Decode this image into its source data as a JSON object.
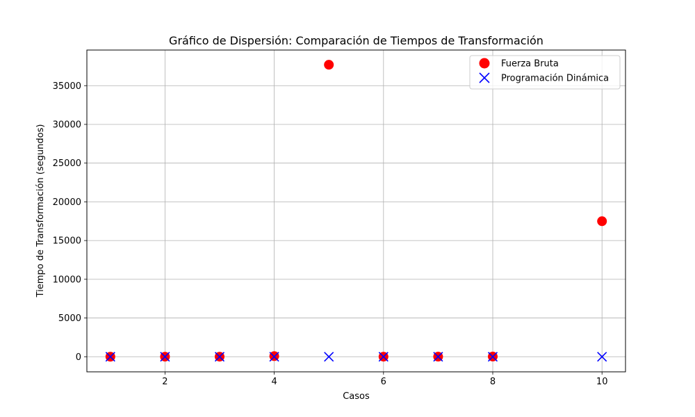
{
  "chart_data": {
    "type": "scatter",
    "title": "Gráfico de Dispersión: Comparación de Tiempos de Transformación",
    "xlabel": "Casos",
    "ylabel": "Tiempo de Transformación (segundos)",
    "xlim": [
      0.57,
      10.43
    ],
    "ylim": [
      -1950,
      39600
    ],
    "xticks": [
      2,
      4,
      6,
      8,
      10
    ],
    "yticks": [
      0,
      5000,
      10000,
      15000,
      20000,
      25000,
      30000,
      35000
    ],
    "grid": true,
    "legend_position": "top-right",
    "series": [
      {
        "name": "Fuerza Bruta",
        "marker": "circle",
        "color": "#ff0000",
        "x": [
          1,
          2,
          3,
          4,
          5,
          6,
          7,
          8,
          10
        ],
        "y": [
          2,
          3,
          5,
          80,
          37700,
          5,
          10,
          20,
          17500
        ]
      },
      {
        "name": "Programación Dinámica",
        "marker": "x",
        "color": "#0000ff",
        "x": [
          1,
          2,
          3,
          4,
          5,
          6,
          7,
          8,
          10
        ],
        "y": [
          0.1,
          0.1,
          0.1,
          0.1,
          0.1,
          0.1,
          0.1,
          0.1,
          0.1
        ]
      }
    ]
  }
}
